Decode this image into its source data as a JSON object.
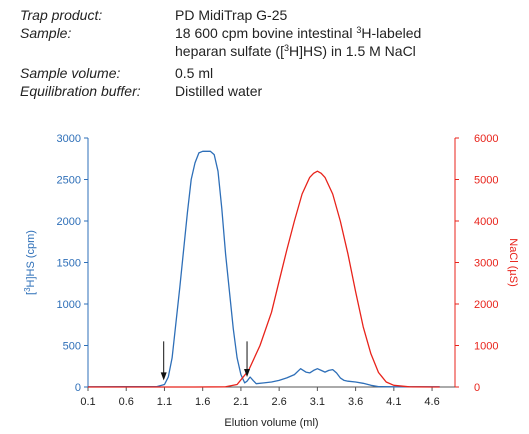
{
  "info": {
    "rows": [
      {
        "label": "Trap product:",
        "value": "PD MidiTrap G-25"
      },
      {
        "label": "Sample:",
        "value_line1_pre": "18 600 cpm bovine intestinal ",
        "value_line1_sup": "3",
        "value_line1_post": "H-labeled",
        "value_line2_pre": "heparan sulfate ([",
        "value_line2_sup": "3",
        "value_line2_post": "H]HS) in 1.5 M NaCl"
      },
      {
        "label": "Sample volume:",
        "value": "0.5 ml"
      },
      {
        "label": "Equilibration buffer:",
        "value": "Distilled water"
      }
    ]
  },
  "chart_data": {
    "type": "line",
    "xlabel": "Elution volume (ml)",
    "ylabel_left_pre": "[",
    "ylabel_left_sup": "3",
    "ylabel_left_post": "H]HS (cpm)",
    "ylabel_right": "NaCl (µS)",
    "xlim": [
      0.1,
      4.9
    ],
    "ylim_left": [
      0,
      3000
    ],
    "ylim_right": [
      0,
      6000
    ],
    "x_ticks": [
      "0.1",
      "0.6",
      "1.1",
      "1.6",
      "2.1",
      "2.6",
      "3.1",
      "3.6",
      "4.1",
      "4.6"
    ],
    "y_ticks_left": [
      "0",
      "500",
      "1000",
      "1500",
      "2000",
      "2500",
      "3000"
    ],
    "y_ticks_right": [
      "0",
      "1000",
      "2000",
      "3000",
      "4000",
      "5000",
      "6000"
    ],
    "colors": {
      "left_axis": "#2e6fb8",
      "right_axis": "#e8231b",
      "cpm_series": "#2e6fb8",
      "nacl_series": "#e8231b"
    },
    "series": [
      {
        "axis": "left",
        "x": [
          0.1,
          0.6,
          1.0,
          1.1,
          1.15,
          1.2,
          1.3,
          1.4,
          1.45,
          1.5,
          1.55,
          1.6,
          1.7,
          1.75,
          1.8,
          1.85,
          1.9,
          2.0,
          2.05,
          2.1,
          2.15,
          2.18,
          2.22,
          2.26,
          2.3,
          2.4,
          2.5,
          2.6,
          2.7,
          2.8,
          2.88,
          2.95,
          3.0,
          3.05,
          3.1,
          3.15,
          3.2,
          3.25,
          3.3,
          3.35,
          3.4,
          3.45,
          3.5,
          3.6,
          3.7,
          3.8,
          3.9,
          4.1,
          4.7
        ],
        "y": [
          3,
          4,
          5,
          30,
          120,
          350,
          1200,
          2100,
          2500,
          2700,
          2820,
          2840,
          2840,
          2800,
          2600,
          2150,
          1600,
          700,
          350,
          150,
          50,
          70,
          120,
          80,
          40,
          50,
          60,
          80,
          110,
          150,
          220,
          180,
          170,
          200,
          220,
          200,
          180,
          200,
          210,
          170,
          110,
          80,
          70,
          60,
          45,
          20,
          5,
          3,
          2
        ]
      },
      {
        "axis": "right",
        "x": [
          0.1,
          1.0,
          1.5,
          1.9,
          2.05,
          2.2,
          2.35,
          2.5,
          2.6,
          2.7,
          2.8,
          2.9,
          3.0,
          3.05,
          3.1,
          3.15,
          3.2,
          3.3,
          3.4,
          3.5,
          3.6,
          3.7,
          3.8,
          3.9,
          4.0,
          4.1,
          4.3,
          4.6,
          4.7
        ],
        "y": [
          0,
          0,
          0,
          5,
          60,
          400,
          1000,
          1800,
          2550,
          3300,
          4000,
          4650,
          5050,
          5150,
          5200,
          5150,
          5050,
          4650,
          4000,
          3200,
          2300,
          1450,
          800,
          350,
          120,
          40,
          5,
          0,
          0
        ]
      }
    ],
    "annotations": [
      {
        "type": "arrow",
        "x": 1.09,
        "from_y": 550,
        "to_y": 80
      },
      {
        "type": "arrow",
        "x": 2.18,
        "from_y": 550,
        "to_y": 120
      }
    ]
  }
}
